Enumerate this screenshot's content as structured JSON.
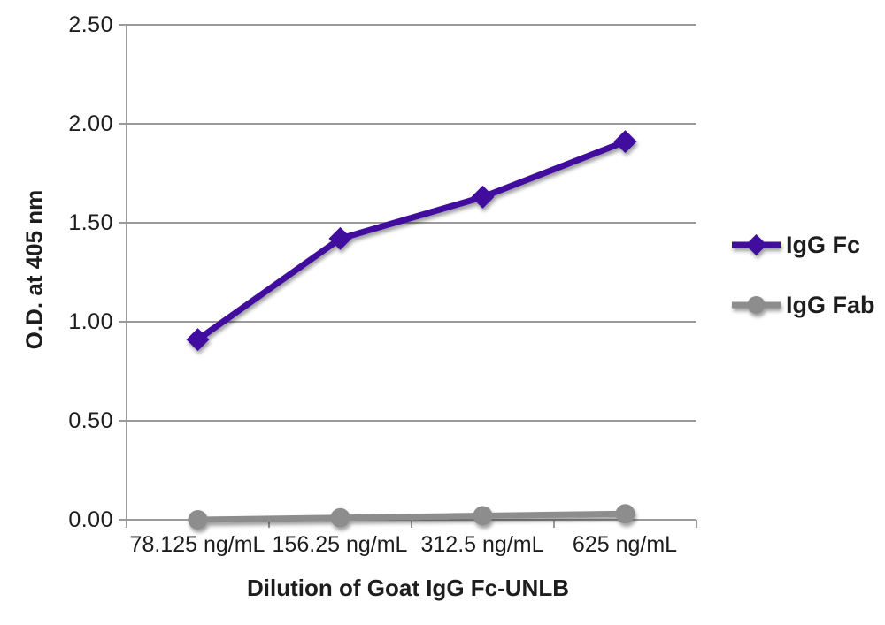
{
  "chart_data": {
    "type": "line",
    "title": "",
    "xlabel": "Dilution of Goat IgG Fc-UNLB",
    "ylabel": "O.D. at 405 nm",
    "categories": [
      "78.125 ng/mL",
      "156.25 ng/mL",
      "312.5 ng/mL",
      "625 ng/mL"
    ],
    "series": [
      {
        "name": "IgG Fc",
        "marker": "diamond",
        "color": "#40109e",
        "values": [
          0.91,
          1.42,
          1.63,
          1.91
        ]
      },
      {
        "name": "IgG Fab",
        "marker": "circle",
        "color": "#8d8d8d",
        "values": [
          0.0,
          0.01,
          0.02,
          0.03
        ]
      }
    ],
    "ylim": [
      0,
      2.5
    ],
    "ytick_labels": [
      "2.50",
      "2.00",
      "1.50",
      "1.00",
      "0.50",
      "0.00"
    ],
    "grid": "horizontal",
    "legend_position": "right",
    "colors": {
      "gridline": "#9b9b9b",
      "axis": "#9b9b9b",
      "text": "#1d1d1d",
      "background": "#ffffff"
    }
  }
}
